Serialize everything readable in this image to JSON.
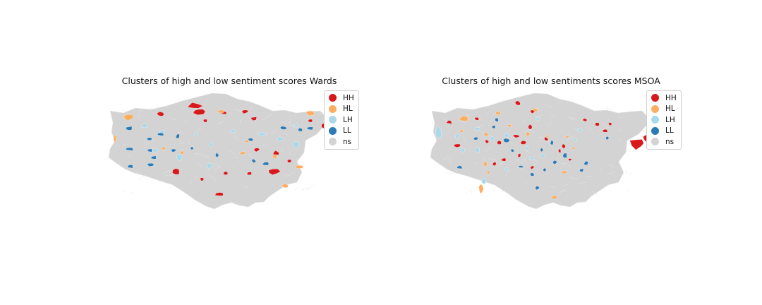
{
  "maps": [
    {
      "title": "Clusters of high and low sentiment scores Wards",
      "legend": [
        {
          "label": "HH",
          "color": "#d7191c"
        },
        {
          "label": "HL",
          "color": "#fdae61"
        },
        {
          "label": "LH",
          "color": "#abd9e9"
        },
        {
          "label": "LL",
          "color": "#2c7bb6"
        },
        {
          "label": "ns",
          "color": "#d3d3d3"
        }
      ]
    },
    {
      "title": "Clusters of high and low sentiments scores MSOA",
      "legend": [
        {
          "label": "HH",
          "color": "#d7191c"
        },
        {
          "label": "HL",
          "color": "#fdae61"
        },
        {
          "label": "LH",
          "color": "#abd9e9"
        },
        {
          "label": "LL",
          "color": "#2c7bb6"
        },
        {
          "label": "ns",
          "color": "#d3d3d3"
        }
      ]
    }
  ]
}
